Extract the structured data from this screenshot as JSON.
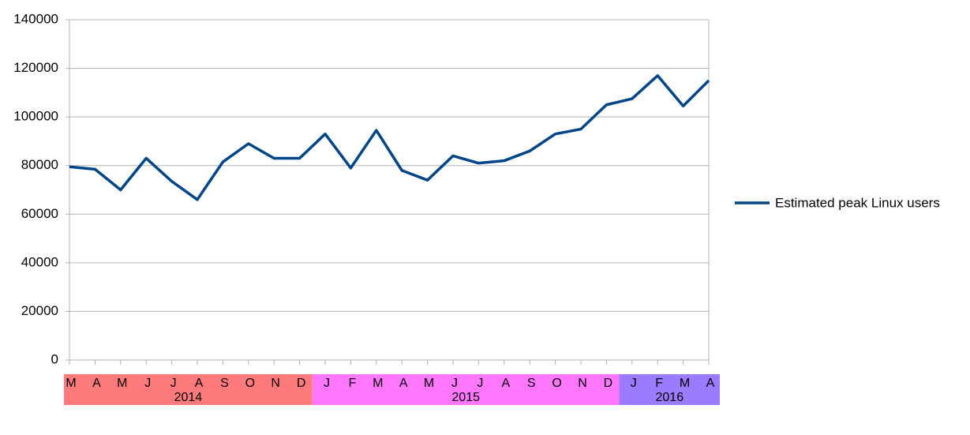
{
  "chart_data": {
    "type": "line",
    "groups": [
      {
        "name": "2014",
        "color": "#ff7b7b",
        "categories": [
          "M",
          "A",
          "M",
          "J",
          "J",
          "A",
          "S",
          "O",
          "N",
          "D"
        ]
      },
      {
        "name": "2015",
        "color": "#ff77ff",
        "categories": [
          "J",
          "F",
          "M",
          "A",
          "M",
          "J",
          "J",
          "A",
          "S",
          "O",
          "N",
          "D"
        ]
      },
      {
        "name": "2016",
        "color": "#9b7bff",
        "categories": [
          "J",
          "F",
          "M",
          "A"
        ]
      }
    ],
    "series": [
      {
        "name": "Estimated peak Linux users",
        "color": "#004586",
        "values": [
          79500,
          78500,
          70000,
          83000,
          73500,
          66000,
          81500,
          89000,
          83000,
          83000,
          93000,
          79000,
          94500,
          78000,
          74000,
          84000,
          81000,
          82000,
          86000,
          93000,
          95000,
          105000,
          107500,
          117000,
          104500,
          115000
        ]
      }
    ],
    "ylim": [
      0,
      140000
    ],
    "yticks": [
      0,
      20000,
      40000,
      60000,
      80000,
      100000,
      120000,
      140000
    ],
    "grid": true,
    "legend": "right"
  }
}
